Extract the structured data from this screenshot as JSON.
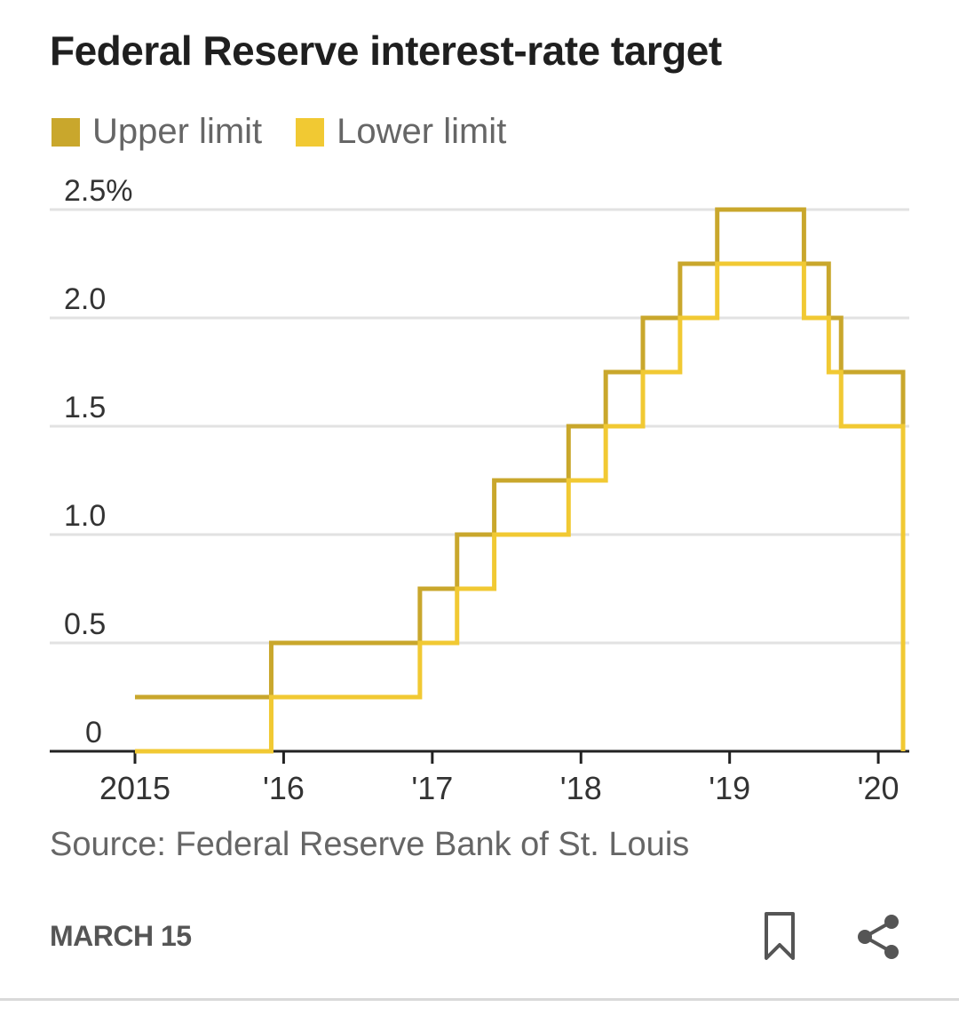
{
  "title": "Federal Reserve interest-rate target",
  "legend": [
    {
      "label": "Upper limit",
      "color": "#c9a72c"
    },
    {
      "label": "Lower limit",
      "color": "#f1c933"
    }
  ],
  "source": "Source: Federal Reserve Bank of St. Louis",
  "date": "MARCH 15",
  "icons": {
    "bookmark": "bookmark-icon",
    "share": "share-icon"
  },
  "chart_data": {
    "type": "line",
    "step": true,
    "title": "Federal Reserve interest-rate target",
    "xlabel": "",
    "ylabel": "",
    "y_unit": "%",
    "ylim": [
      0,
      2.5
    ],
    "y_ticks": [
      {
        "value": 0,
        "label": "0"
      },
      {
        "value": 0.5,
        "label": "0.5"
      },
      {
        "value": 1.0,
        "label": "1.0"
      },
      {
        "value": 1.5,
        "label": "1.5"
      },
      {
        "value": 2.0,
        "label": "2.0"
      },
      {
        "value": 2.5,
        "label": "2.5%"
      }
    ],
    "x_ticks": [
      "2015",
      "'16",
      "'17",
      "'18",
      "'19",
      "'20"
    ],
    "x_range": [
      "2015-01",
      "2020-03"
    ],
    "grid": true,
    "legend_position": "top-left",
    "series": [
      {
        "name": "Upper limit",
        "color": "#c9a72c",
        "points": [
          [
            "2015-01",
            0.25
          ],
          [
            "2015-12",
            0.5
          ],
          [
            "2016-12",
            0.75
          ],
          [
            "2017-03",
            1.0
          ],
          [
            "2017-06",
            1.25
          ],
          [
            "2017-12",
            1.5
          ],
          [
            "2018-03",
            1.75
          ],
          [
            "2018-06",
            2.0
          ],
          [
            "2018-09",
            2.25
          ],
          [
            "2018-12",
            2.5
          ],
          [
            "2019-07",
            2.25
          ],
          [
            "2019-09",
            2.0
          ],
          [
            "2019-10",
            1.75
          ],
          [
            "2020-03",
            1.25
          ],
          [
            "2020-03",
            0.25
          ]
        ]
      },
      {
        "name": "Lower limit",
        "color": "#f1c933",
        "points": [
          [
            "2015-01",
            0.0
          ],
          [
            "2015-12",
            0.25
          ],
          [
            "2016-12",
            0.5
          ],
          [
            "2017-03",
            0.75
          ],
          [
            "2017-06",
            1.0
          ],
          [
            "2017-12",
            1.25
          ],
          [
            "2018-03",
            1.5
          ],
          [
            "2018-06",
            1.75
          ],
          [
            "2018-09",
            2.0
          ],
          [
            "2018-12",
            2.25
          ],
          [
            "2019-07",
            2.0
          ],
          [
            "2019-09",
            1.75
          ],
          [
            "2019-10",
            1.5
          ],
          [
            "2020-03",
            1.0
          ],
          [
            "2020-03",
            0.0
          ]
        ]
      }
    ]
  }
}
